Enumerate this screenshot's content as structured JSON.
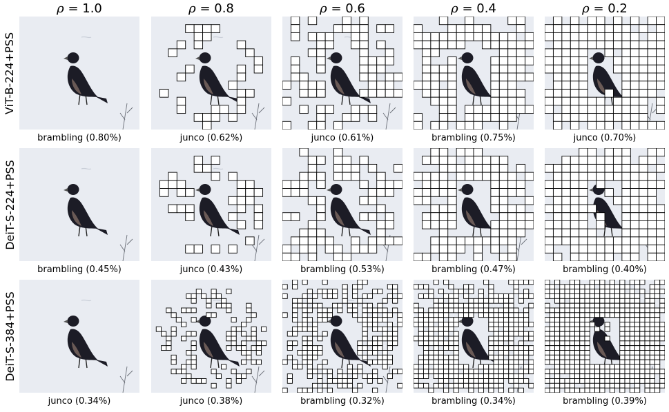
{
  "columns": [
    {
      "rho_symbol": "ρ",
      "rho_value": "= 1.0"
    },
    {
      "rho_symbol": "ρ",
      "rho_value": "= 0.8"
    },
    {
      "rho_symbol": "ρ",
      "rho_value": "= 0.6"
    },
    {
      "rho_symbol": "ρ",
      "rho_value": "= 0.4"
    },
    {
      "rho_symbol": "ρ",
      "rho_value": "= 0.2"
    }
  ],
  "rows": [
    {
      "label": "ViT-B-224+PSS",
      "grid_size": 14,
      "captions": [
        "brambling (0.80%)",
        "junco (0.62%)",
        "junco (0.61%)",
        "brambling (0.75%)",
        "junco (0.70%)"
      ]
    },
    {
      "label": "DeiT-S-224+PSS",
      "grid_size": 14,
      "captions": [
        "brambling (0.45%)",
        "junco (0.43%)",
        "brambling (0.53%)",
        "brambling (0.47%)",
        "brambling (0.40%)"
      ]
    },
    {
      "label": "DeiT-S-384+PSS",
      "grid_size": 24,
      "captions": [
        "junco (0.34%)",
        "junco (0.38%)",
        "brambling (0.32%)",
        "brambling (0.34%)",
        "brambling (0.39%)"
      ]
    }
  ],
  "keep_ratios": [
    1.0,
    0.8,
    0.6,
    0.4,
    0.2
  ],
  "colors": {
    "snow": "#e9ecf2",
    "bird": "#1c1c26",
    "patch_fill": "#ffffff",
    "patch_stroke": "#000000"
  }
}
